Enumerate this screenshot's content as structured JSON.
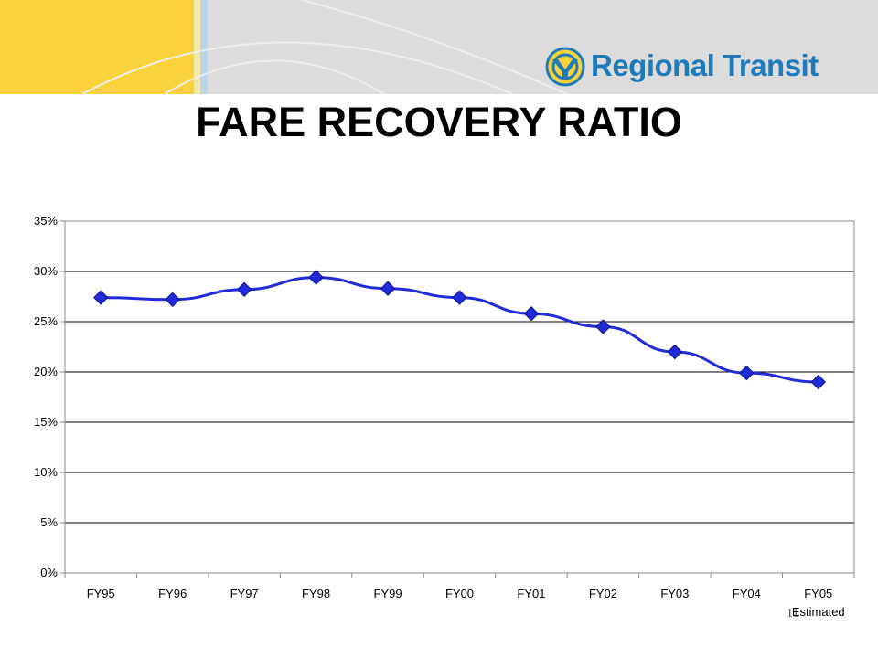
{
  "brand": {
    "name": "Regional Transit",
    "color": "#1e7ab8",
    "accent": "#f9d23c"
  },
  "slide": {
    "title": "FARE RECOVERY RATIO",
    "page_number": "11"
  },
  "chart_data": {
    "type": "line",
    "title": "",
    "xlabel": "",
    "ylabel": "",
    "categories": [
      "FY95",
      "FY96",
      "FY97",
      "FY98",
      "FY99",
      "FY00",
      "FY01",
      "FY02",
      "FY03",
      "FY04",
      "FY05"
    ],
    "category_notes": {
      "FY05": "Estimated"
    },
    "series": [
      {
        "values": [
          0.274,
          0.272,
          0.282,
          0.294,
          0.283,
          0.274,
          0.258,
          0.245,
          0.22,
          0.199,
          0.19
        ],
        "color": "#1f2bd6"
      }
    ],
    "ylim": [
      0,
      0.35
    ],
    "y_ticks": [
      "0%",
      "5%",
      "10%",
      "15%",
      "20%",
      "25%",
      "30%",
      "35%"
    ],
    "grid": true,
    "legend": "none"
  }
}
